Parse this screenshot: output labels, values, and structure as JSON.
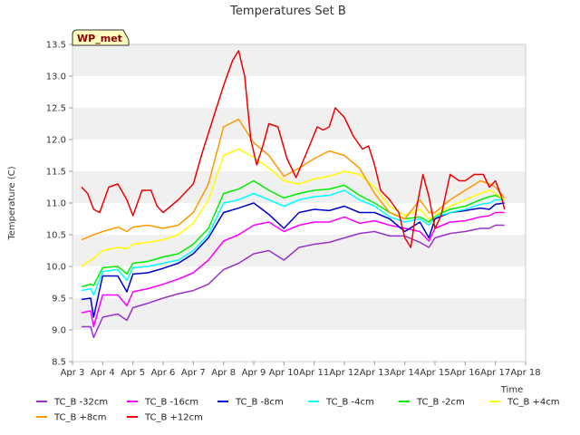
{
  "chart_data": {
    "type": "line",
    "title": "Temperatures Set B",
    "xlabel": "Time",
    "ylabel": "Temperature (C)",
    "badge": "WP_met",
    "ylim": [
      8.5,
      13.5
    ],
    "xlim": [
      0,
      15
    ],
    "grid": "horizontal bands",
    "legend_placement": "bottom",
    "yticks": [
      "8.5",
      "9.0",
      "9.5",
      "10.0",
      "10.5",
      "11.0",
      "11.5",
      "12.0",
      "12.5",
      "13.0",
      "13.5"
    ],
    "xticks": [
      "Apr 3",
      "Apr 4",
      "Apr 5",
      "Apr 6",
      "Apr 7",
      "Apr 8",
      "Apr 9",
      "Apr 10",
      "Apr 11",
      "Apr 12",
      "Apr 13",
      "Apr 14",
      "Apr 15",
      "Apr 16",
      "Apr 17",
      "Apr 18"
    ],
    "series": [
      {
        "name": "TC_B -32cm",
        "color": "#9932cc",
        "x": [
          0.3,
          0.6,
          0.7,
          1,
          1.5,
          1.8,
          2,
          2.5,
          3,
          3.5,
          4,
          4.5,
          5,
          5.5,
          6,
          6.5,
          7,
          7.5,
          8,
          8.5,
          9,
          9.5,
          10,
          10.5,
          11,
          11.5,
          11.8,
          12,
          12.5,
          13,
          13.5,
          13.8,
          14,
          14.3
        ],
        "y": [
          9.05,
          9.05,
          8.88,
          9.2,
          9.25,
          9.15,
          9.35,
          9.42,
          9.5,
          9.57,
          9.62,
          9.72,
          9.95,
          10.05,
          10.2,
          10.25,
          10.1,
          10.3,
          10.35,
          10.38,
          10.45,
          10.52,
          10.55,
          10.48,
          10.48,
          10.38,
          10.3,
          10.45,
          10.52,
          10.55,
          10.6,
          10.6,
          10.65,
          10.65
        ]
      },
      {
        "name": "TC_B -16cm",
        "color": "#ff00ff",
        "x": [
          0.3,
          0.6,
          0.7,
          1,
          1.5,
          1.8,
          2,
          2.5,
          3,
          3.5,
          4,
          4.5,
          5,
          5.5,
          6,
          6.5,
          7,
          7.5,
          8,
          8.5,
          9,
          9.5,
          10,
          10.5,
          11,
          11.5,
          11.8,
          12,
          12.5,
          13,
          13.5,
          13.8,
          14,
          14.3
        ],
        "y": [
          9.27,
          9.3,
          9.05,
          9.55,
          9.55,
          9.38,
          9.6,
          9.65,
          9.72,
          9.8,
          9.9,
          10.1,
          10.4,
          10.5,
          10.65,
          10.7,
          10.55,
          10.65,
          10.7,
          10.7,
          10.78,
          10.68,
          10.72,
          10.65,
          10.6,
          10.55,
          10.4,
          10.6,
          10.7,
          10.72,
          10.78,
          10.8,
          10.85,
          10.85
        ]
      },
      {
        "name": "TC_B -8cm",
        "color": "#0000cd",
        "x": [
          0.3,
          0.6,
          0.7,
          1,
          1.5,
          1.8,
          2,
          2.5,
          3,
          3.5,
          4,
          4.5,
          5,
          5.5,
          6,
          6.5,
          7,
          7.5,
          8,
          8.5,
          9,
          9.5,
          10,
          10.5,
          11,
          11.5,
          11.8,
          12,
          12.5,
          13,
          13.5,
          13.8,
          14,
          14.3
        ],
        "y": [
          9.48,
          9.5,
          9.2,
          9.85,
          9.85,
          9.6,
          9.88,
          9.9,
          9.97,
          10.05,
          10.2,
          10.45,
          10.85,
          10.92,
          11.0,
          10.82,
          10.6,
          10.85,
          10.9,
          10.88,
          10.95,
          10.85,
          10.85,
          10.75,
          10.55,
          10.7,
          10.45,
          10.75,
          10.85,
          10.88,
          10.92,
          10.9,
          10.98,
          11.0
        ]
      },
      {
        "name": "TC_B -4cm",
        "color": "#00ffff",
        "x": [
          0.3,
          0.6,
          0.7,
          1,
          1.5,
          1.8,
          2,
          2.5,
          3,
          3.5,
          4,
          4.5,
          5,
          5.5,
          6,
          6.5,
          7,
          7.5,
          8,
          8.5,
          9,
          9.5,
          10,
          10.5,
          11,
          11.5,
          11.8,
          12,
          12.5,
          13,
          13.5,
          13.8,
          14,
          14.3
        ],
        "y": [
          9.62,
          9.65,
          9.55,
          9.92,
          9.95,
          9.78,
          9.98,
          10.0,
          10.05,
          10.1,
          10.25,
          10.5,
          11.0,
          11.05,
          11.15,
          11.05,
          10.95,
          11.05,
          11.1,
          11.12,
          11.2,
          11.05,
          10.95,
          10.78,
          10.7,
          10.75,
          10.65,
          10.78,
          10.85,
          10.9,
          10.98,
          11.0,
          11.05,
          11.05
        ]
      },
      {
        "name": "TC_B -2cm",
        "color": "#00ee00",
        "x": [
          0.3,
          0.6,
          0.7,
          1,
          1.5,
          1.8,
          2,
          2.5,
          3,
          3.5,
          4,
          4.5,
          5,
          5.5,
          6,
          6.5,
          7,
          7.5,
          8,
          8.5,
          9,
          9.5,
          10,
          10.5,
          11,
          11.5,
          11.8,
          12,
          12.5,
          13,
          13.5,
          13.8,
          14,
          14.3
        ],
        "y": [
          9.68,
          9.72,
          9.7,
          9.98,
          10.0,
          9.88,
          10.05,
          10.08,
          10.15,
          10.2,
          10.35,
          10.6,
          11.15,
          11.22,
          11.35,
          11.2,
          11.08,
          11.15,
          11.2,
          11.22,
          11.28,
          11.12,
          11.0,
          10.85,
          10.75,
          10.78,
          10.7,
          10.8,
          10.9,
          10.95,
          11.05,
          11.1,
          11.12,
          11.05
        ]
      },
      {
        "name": "TC_B +4cm",
        "color": "#ffff00",
        "x": [
          0.3,
          0.6,
          0.7,
          1,
          1.5,
          1.8,
          2,
          2.5,
          3,
          3.5,
          4,
          4.5,
          5,
          5.5,
          6,
          6.5,
          7,
          7.5,
          8,
          8.5,
          9,
          9.5,
          10,
          10.5,
          11,
          11.5,
          11.8,
          12,
          12.5,
          13,
          13.5,
          13.8,
          14,
          14.3
        ],
        "y": [
          10.0,
          10.1,
          10.12,
          10.25,
          10.3,
          10.28,
          10.35,
          10.38,
          10.42,
          10.5,
          10.68,
          11.05,
          11.75,
          11.85,
          11.72,
          11.55,
          11.35,
          11.3,
          11.38,
          11.42,
          11.5,
          11.45,
          11.25,
          10.95,
          10.8,
          10.9,
          10.75,
          10.8,
          10.95,
          11.05,
          11.15,
          11.2,
          11.15,
          11.05
        ]
      },
      {
        "name": "TC_B +8cm",
        "color": "#ff9900",
        "x": [
          0.3,
          0.6,
          0.7,
          1,
          1.5,
          1.8,
          2,
          2.5,
          3,
          3.5,
          4,
          4.5,
          5,
          5.5,
          6,
          6.5,
          7,
          7.5,
          8,
          8.5,
          9,
          9.5,
          10,
          10.5,
          11,
          11.5,
          11.8,
          12,
          12.5,
          13,
          13.5,
          13.8,
          14,
          14.3
        ],
        "y": [
          10.42,
          10.48,
          10.5,
          10.55,
          10.62,
          10.55,
          10.62,
          10.65,
          10.6,
          10.65,
          10.85,
          11.3,
          12.2,
          12.32,
          11.95,
          11.75,
          11.42,
          11.55,
          11.7,
          11.82,
          11.75,
          11.55,
          11.15,
          10.85,
          10.75,
          11.05,
          10.85,
          10.85,
          11.05,
          11.2,
          11.35,
          11.3,
          11.25,
          11.08
        ]
      },
      {
        "name": "TC_B +12cm",
        "color": "#ee0000",
        "x": [
          0.3,
          0.5,
          0.7,
          0.9,
          1.2,
          1.5,
          1.8,
          2,
          2.3,
          2.6,
          2.8,
          3,
          3.5,
          4,
          4.3,
          4.6,
          5,
          5.3,
          5.5,
          5.7,
          5.9,
          6.1,
          6.3,
          6.5,
          6.8,
          7.1,
          7.4,
          7.8,
          8.1,
          8.3,
          8.5,
          8.7,
          9,
          9.3,
          9.6,
          9.8,
          10,
          10.2,
          10.5,
          10.8,
          11,
          11.2,
          11.4,
          11.6,
          11.8,
          12,
          12.2,
          12.5,
          12.8,
          13,
          13.3,
          13.6,
          13.8,
          14,
          14.2,
          14.3
        ],
        "y": [
          11.25,
          11.15,
          10.9,
          10.85,
          11.25,
          11.3,
          11.05,
          10.8,
          11.2,
          11.2,
          10.95,
          10.85,
          11.05,
          11.3,
          11.8,
          12.25,
          12.85,
          13.25,
          13.4,
          13.0,
          12.0,
          11.6,
          11.9,
          12.25,
          12.2,
          11.7,
          11.4,
          11.85,
          12.2,
          12.15,
          12.2,
          12.5,
          12.35,
          12.05,
          11.85,
          11.9,
          11.6,
          11.2,
          11.05,
          10.85,
          10.45,
          10.3,
          10.95,
          11.45,
          11.1,
          10.6,
          10.8,
          11.45,
          11.35,
          11.35,
          11.45,
          11.45,
          11.25,
          11.35,
          11.1,
          10.9
        ]
      }
    ]
  }
}
